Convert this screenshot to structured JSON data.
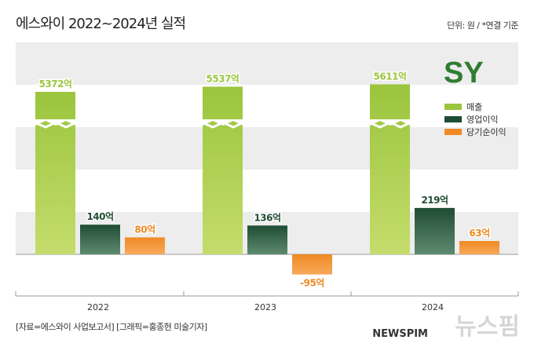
{
  "title": "에스와이 2022~2024년 실적",
  "unit": "단위: 원 / *연결 기준",
  "source": "[자료=에스와이 사업보고서] [그래픽=홍종현 미술기자]",
  "logo": "SY",
  "watermark": "뉴스핌",
  "watermark_sub": "NEWSPIM",
  "chart_data": {
    "type": "bar",
    "categories": [
      "2022",
      "2023",
      "2024"
    ],
    "series": [
      {
        "name": "매출",
        "values": [
          5372,
          5537,
          5611
        ],
        "labels": [
          "5372억",
          "5537억",
          "5611억"
        ],
        "color": "#9bc53d"
      },
      {
        "name": "영업이익",
        "values": [
          140,
          136,
          219
        ],
        "labels": [
          "140억",
          "136억",
          "219억"
        ],
        "color": "#1f4d33"
      },
      {
        "name": "당기순이익",
        "values": [
          80,
          -95,
          63
        ],
        "labels": [
          "80억",
          "-95억",
          "63억"
        ],
        "color": "#f08a24"
      }
    ],
    "axis_break": true,
    "legend": "top-right"
  }
}
